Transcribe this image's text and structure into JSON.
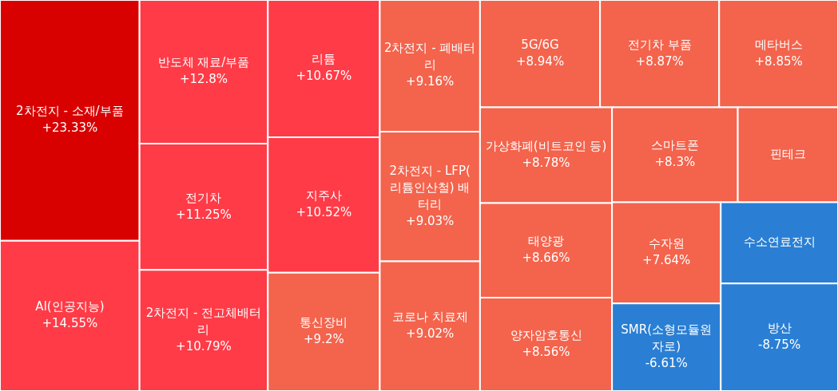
{
  "chart_data": {
    "type": "other",
    "categories": [
      "2차전지 - 소재/부품",
      "AI(인공지능)",
      "반도체 재료/부품",
      "전기차",
      "2차전지 - 전고체배터리",
      "리튬",
      "지주사",
      "통신장비",
      "2차전지 - 폐배터리",
      "2차전지 - LFP(리튬인산철) 배터리",
      "코로나 치료제",
      "5G/6G",
      "전기차 부품",
      "메타버스",
      "가상화폐(비트코인 등)",
      "태양광",
      "양자암호통신",
      "스마트폰",
      "핀테크",
      "수자원",
      "SMR(소형모듈원자로)",
      "수소연료전지",
      "방산"
    ],
    "values": [
      23.33,
      14.55,
      12.8,
      11.25,
      10.79,
      10.67,
      10.52,
      9.2,
      9.16,
      9.03,
      9.02,
      8.94,
      8.87,
      8.85,
      8.78,
      8.66,
      8.56,
      8.3,
      null,
      7.64,
      -6.61,
      null,
      -8.75
    ],
    "value_labels": [
      "+23.33%",
      "+14.55%",
      "+12.8%",
      "+11.25%",
      "+10.79%",
      "+10.67%",
      "+10.52%",
      "+9.2%",
      "+9.16%",
      "+9.03%",
      "+9.02%",
      "+8.94%",
      "+8.87%",
      "+8.85%",
      "+8.78%",
      "+8.66%",
      "+8.56%",
      "+8.3%",
      null,
      "+7.64%",
      "-6.61%",
      null,
      "-8.75%"
    ],
    "colors": [
      "#d90000",
      "#ff3b47",
      "#ff3b47",
      "#ff3b47",
      "#ff3b47",
      "#ff3b47",
      "#ff3b47",
      "#f4634c",
      "#f4634c",
      "#f4634c",
      "#f4634c",
      "#f4634c",
      "#f4634c",
      "#f4634c",
      "#f4634c",
      "#f4634c",
      "#f4634c",
      "#f4634c",
      "#f4634c",
      "#f4634c",
      "#2a7fd4",
      "#2a7fd4",
      "#2a7fd4"
    ]
  }
}
